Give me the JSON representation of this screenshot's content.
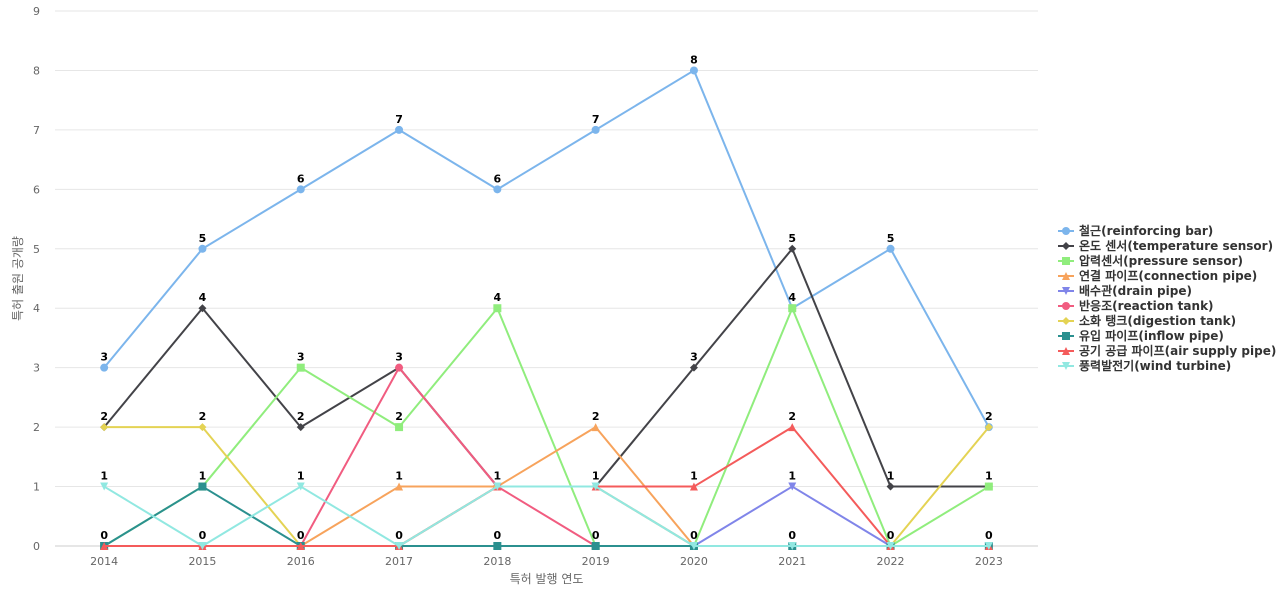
{
  "chart_data": {
    "type": "line",
    "title": "",
    "xlabel": "특허 발행 연도",
    "ylabel": "특허 출원 공개량",
    "categories": [
      "2014",
      "2015",
      "2016",
      "2017",
      "2018",
      "2019",
      "2020",
      "2021",
      "2022",
      "2023"
    ],
    "ylim": [
      0,
      9
    ],
    "yticks": [
      0,
      1,
      2,
      3,
      4,
      5,
      6,
      7,
      8,
      9
    ],
    "grid": true,
    "legend_position": "right",
    "series": [
      {
        "name": "철근(reinforcing bar)",
        "color": "#7cb5ec",
        "marker": "circle",
        "values": [
          3,
          5,
          6,
          7,
          6,
          7,
          8,
          4,
          5,
          2
        ]
      },
      {
        "name": "온도 센서(temperature sensor)",
        "color": "#434348",
        "marker": "diamond",
        "values": [
          2,
          4,
          2,
          3,
          1,
          1,
          3,
          5,
          1,
          1
        ]
      },
      {
        "name": "압력센서(pressure sensor)",
        "color": "#90ed7d",
        "marker": "square",
        "values": [
          0,
          1,
          3,
          2,
          4,
          0,
          0,
          4,
          0,
          1
        ]
      },
      {
        "name": "연결 파이프(connection pipe)",
        "color": "#f7a35c",
        "marker": "triangle",
        "values": [
          0,
          0,
          0,
          1,
          1,
          2,
          0,
          0,
          0,
          0
        ]
      },
      {
        "name": "배수관(drain pipe)",
        "color": "#8085e9",
        "marker": "triangle-down",
        "values": [
          0,
          0,
          0,
          0,
          1,
          1,
          0,
          1,
          0,
          0
        ]
      },
      {
        "name": "반응조(reaction tank)",
        "color": "#f15c80",
        "marker": "circle",
        "values": [
          0,
          0,
          0,
          3,
          1,
          0,
          0,
          0,
          0,
          0
        ]
      },
      {
        "name": "소화 탱크(digestion tank)",
        "color": "#e4d354",
        "marker": "diamond",
        "values": [
          2,
          2,
          0,
          0,
          1,
          1,
          0,
          0,
          0,
          2
        ]
      },
      {
        "name": "유입 파이프(inflow pipe)",
        "color": "#2b908f",
        "marker": "square",
        "values": [
          0,
          1,
          0,
          0,
          0,
          0,
          0,
          0,
          0,
          0
        ]
      },
      {
        "name": "공기 공급 파이프(air supply pipe)",
        "color": "#f45b5b",
        "marker": "triangle",
        "values": [
          0,
          0,
          0,
          0,
          1,
          1,
          1,
          2,
          0,
          0
        ]
      },
      {
        "name": "풍력발전기(wind turbine)",
        "color": "#91e8e1",
        "marker": "triangle-down",
        "values": [
          1,
          0,
          1,
          0,
          1,
          1,
          0,
          0,
          0,
          0
        ]
      }
    ],
    "data_labels": [
      {
        "category": "2014",
        "values": [
          3,
          2,
          1,
          0
        ]
      },
      {
        "category": "2015",
        "values": [
          5,
          4,
          2,
          1,
          0
        ]
      },
      {
        "category": "2016",
        "values": [
          6,
          3,
          2,
          1,
          0
        ]
      },
      {
        "category": "2017",
        "values": [
          7,
          3,
          2,
          1,
          0
        ]
      },
      {
        "category": "2018",
        "values": [
          6,
          4,
          1,
          0
        ]
      },
      {
        "category": "2019",
        "values": [
          7,
          2,
          1,
          0
        ]
      },
      {
        "category": "2020",
        "values": [
          8,
          3,
          1,
          0
        ]
      },
      {
        "category": "2021",
        "values": [
          5,
          4,
          2,
          1,
          0
        ]
      },
      {
        "category": "2022",
        "values": [
          5,
          1,
          0
        ]
      },
      {
        "category": "2023",
        "values": [
          2,
          1,
          0
        ]
      }
    ]
  }
}
